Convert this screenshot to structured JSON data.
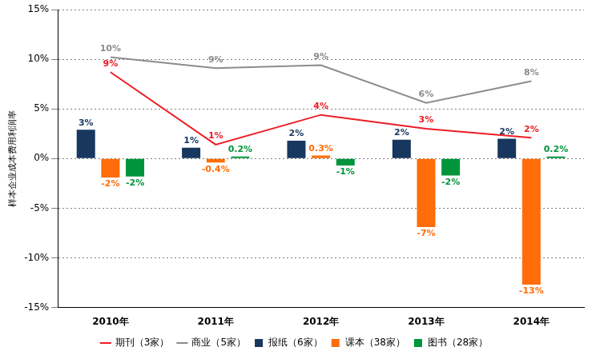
{
  "chart_data": {
    "type": "bar",
    "y_label": "样本企业成本费用利润率",
    "categories": [
      "2010年",
      "2011年",
      "2012年",
      "2013年",
      "2014年"
    ],
    "series": [
      {
        "name": "报纸（6家）",
        "type": "bar",
        "color": "#17375e",
        "values": [
          2.9,
          1.1,
          1.8,
          1.9,
          2.0
        ],
        "value_labels": [
          "3%",
          "1%",
          "2%",
          "2%",
          "2%"
        ]
      },
      {
        "name": "课本（38家）",
        "type": "bar",
        "color": "#ff6d0a",
        "values": [
          -1.9,
          -0.4,
          0.3,
          -6.9,
          -12.7
        ],
        "value_labels": [
          "-2%",
          "-0.4%",
          "0.3%",
          "-7%",
          "-13%"
        ]
      },
      {
        "name": "图书（28家）",
        "type": "bar",
        "color": "#00953a",
        "values": [
          -1.8,
          0.2,
          -0.7,
          -1.7,
          0.2
        ],
        "value_labels": [
          "-2%",
          "0.2%",
          "-1%",
          "-2%",
          "0.2%"
        ]
      },
      {
        "name": "期刊（3家）",
        "type": "line",
        "color": "#ee1c25",
        "values": [
          8.7,
          1.4,
          4.4,
          3.0,
          2.1
        ],
        "value_labels": [
          "9%",
          "1%",
          "4%",
          "3%",
          "2%"
        ]
      },
      {
        "name": "商业（5家）",
        "type": "line",
        "color": "#8c8c8c",
        "values": [
          10.2,
          9.1,
          9.4,
          5.6,
          7.8
        ],
        "value_labels": [
          "10%",
          "9%",
          "9%",
          "6%",
          "8%"
        ]
      }
    ],
    "ylim": [
      -15,
      15
    ],
    "yticks": [
      {
        "value": -15,
        "label": "-15%"
      },
      {
        "value": -10,
        "label": "-10%"
      },
      {
        "value": -5,
        "label": "-5%"
      },
      {
        "value": 0,
        "label": "0%"
      },
      {
        "value": 5,
        "label": "5%"
      },
      {
        "value": 10,
        "label": "10%"
      },
      {
        "value": 15,
        "label": "15%"
      }
    ],
    "grid": true,
    "legend": "bottom",
    "data_labels": true
  }
}
